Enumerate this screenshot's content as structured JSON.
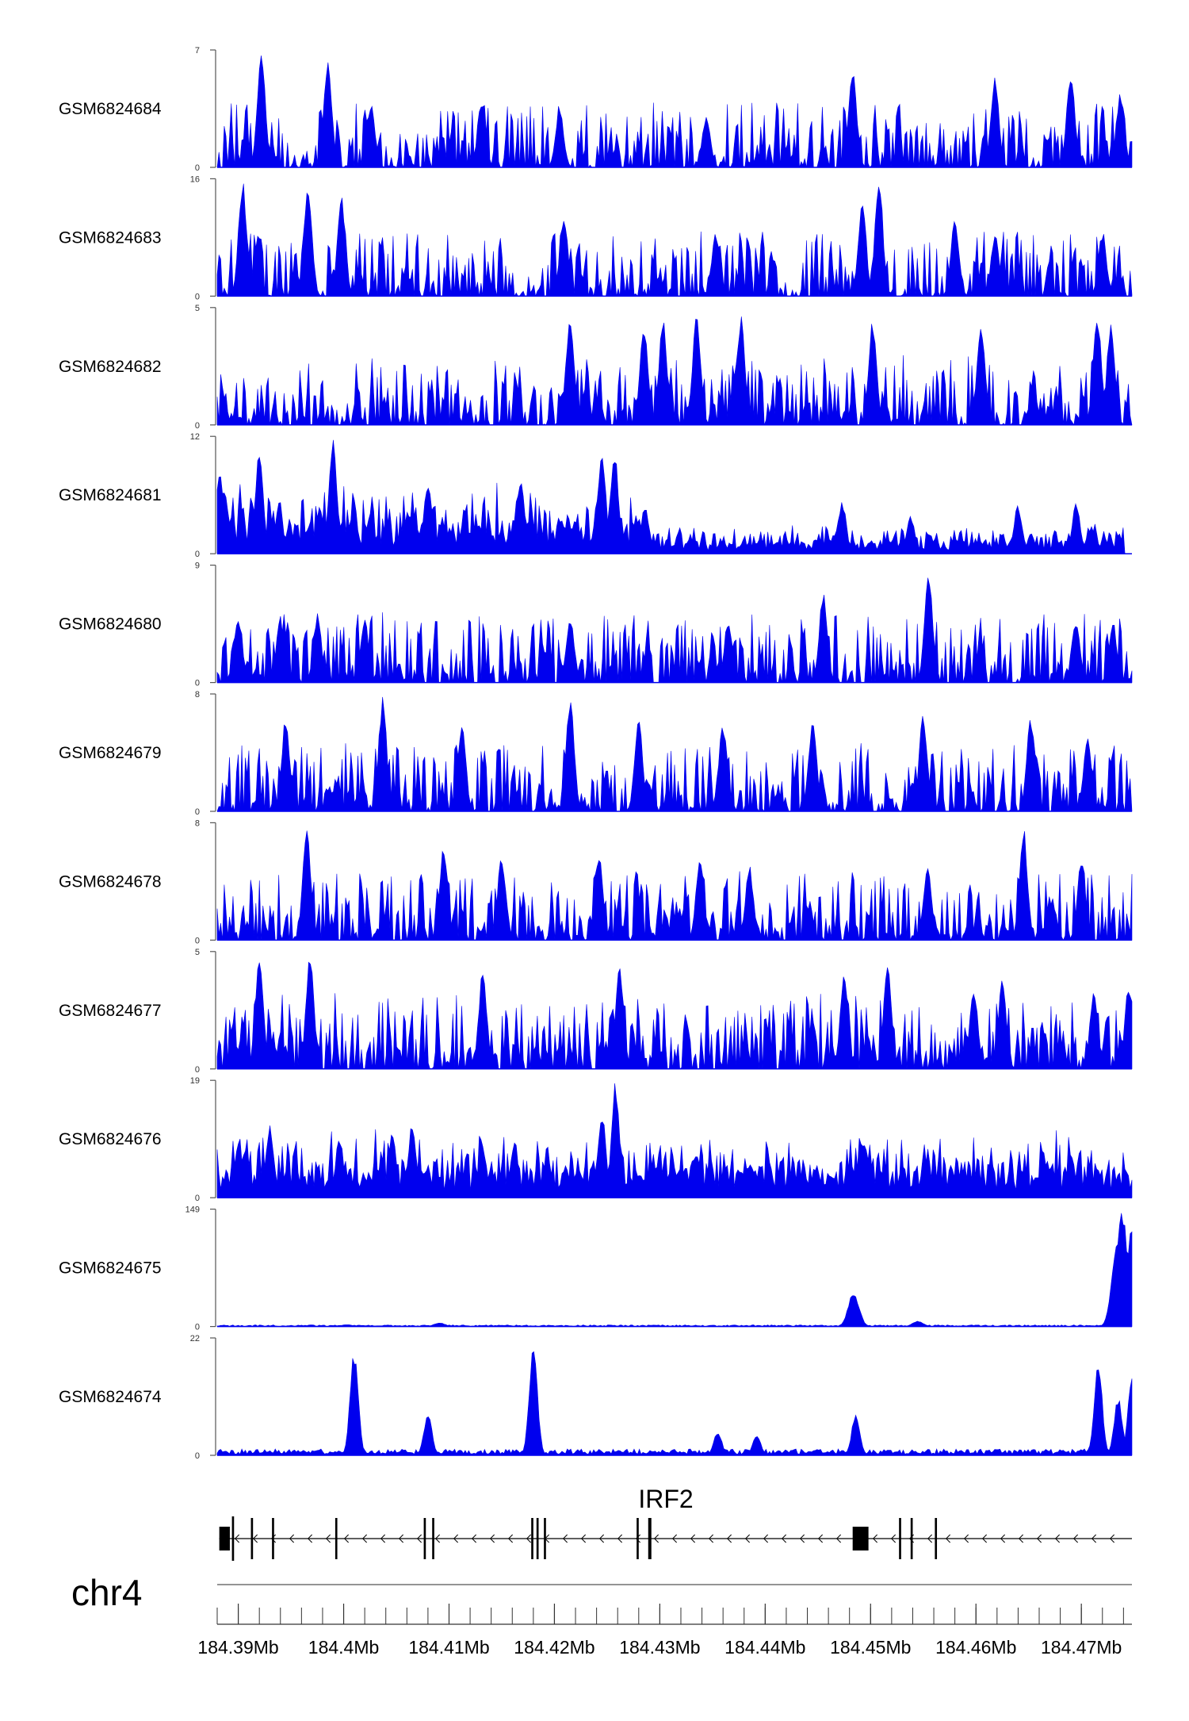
{
  "chart_data": {
    "type": "area",
    "chromosome": "chr4",
    "gene": {
      "name": "IRF2",
      "strand": "-",
      "start": 184.3882,
      "end": 184.4748,
      "exons": [
        [
          184.3882,
          184.3892
        ],
        [
          184.3894,
          184.3896
        ],
        [
          184.3912,
          184.3914
        ],
        [
          184.3932,
          184.3934
        ],
        [
          184.3992,
          184.3994
        ],
        [
          184.4076,
          184.4078
        ],
        [
          184.4084,
          184.4086
        ],
        [
          184.4178,
          184.418
        ],
        [
          184.4183,
          184.4185
        ],
        [
          184.419,
          184.4192
        ],
        [
          184.4278,
          184.428
        ],
        [
          184.4289,
          184.4292
        ],
        [
          184.4483,
          184.4498
        ],
        [
          184.4527,
          184.4529
        ],
        [
          184.4538,
          184.454
        ],
        [
          184.4561,
          184.4563
        ]
      ]
    },
    "x": {
      "label": "",
      "range": [
        184.388,
        184.4748
      ],
      "ticks": [
        184.39,
        184.4,
        184.41,
        184.42,
        184.43,
        184.44,
        184.45,
        184.46,
        184.47
      ],
      "tick_labels": [
        "184.39Mb",
        "184.4Mb",
        "184.41Mb",
        "184.42Mb",
        "184.43Mb",
        "184.44Mb",
        "184.45Mb",
        "184.46Mb",
        "184.47Mb"
      ],
      "minor_tick_step": 0.002
    },
    "grid": false,
    "fill_color": "#0000ee",
    "tracks": [
      {
        "name": "GSM6824684",
        "ymax": 7,
        "yticks": [
          "7",
          "0"
        ],
        "baseline": 0.06,
        "peaks": [
          [
            184.3922,
            7.0
          ],
          [
            184.3985,
            6.3
          ],
          [
            184.4026,
            3.9
          ],
          [
            184.4131,
            4.2
          ],
          [
            184.4205,
            3.5
          ],
          [
            184.4344,
            3.2
          ],
          [
            184.4483,
            6.2
          ],
          [
            184.4618,
            5.4
          ],
          [
            184.469,
            6.0
          ],
          [
            184.4737,
            4.6
          ]
        ]
      },
      {
        "name": "GSM6824683",
        "ymax": 16,
        "yticks": [
          "16",
          "0"
        ],
        "baseline": 0.0,
        "peaks": [
          [
            184.3904,
            16.0
          ],
          [
            184.3966,
            15.8
          ],
          [
            184.3998,
            13.8
          ],
          [
            184.4209,
            11.5
          ],
          [
            184.4353,
            9.0
          ],
          [
            184.4492,
            13.0
          ],
          [
            184.4508,
            16.0
          ],
          [
            184.458,
            10.8
          ],
          [
            184.4618,
            8.5
          ],
          [
            184.472,
            9.0
          ]
        ]
      },
      {
        "name": "GSM6824682",
        "ymax": 5,
        "yticks": [
          "5",
          "0"
        ],
        "baseline": 0.3,
        "peaks": [
          [
            184.4215,
            4.5
          ],
          [
            184.4285,
            4.4
          ],
          [
            184.4303,
            4.7
          ],
          [
            184.4335,
            4.9
          ],
          [
            184.4377,
            4.7
          ],
          [
            184.4502,
            4.5
          ],
          [
            184.4605,
            4.5
          ],
          [
            184.4715,
            4.9
          ],
          [
            184.4728,
            4.4
          ]
        ]
      },
      {
        "name": "GSM6824681",
        "ymax": 12,
        "yticks": [
          "12",
          "0"
        ],
        "baseline": 1.8,
        "peaks": [
          [
            184.3882,
            8.8
          ],
          [
            184.392,
            10.8
          ],
          [
            184.399,
            11.8
          ],
          [
            184.408,
            7.8
          ],
          [
            184.4168,
            7.5
          ],
          [
            184.4245,
            10.3
          ],
          [
            184.4257,
            10.5
          ],
          [
            184.4286,
            5.0
          ],
          [
            184.4473,
            5.5
          ],
          [
            184.4538,
            4.0
          ],
          [
            184.464,
            5.1
          ],
          [
            184.4695,
            5.2
          ],
          [
            184.471,
            2.8
          ]
        ]
      },
      {
        "name": "GSM6824680",
        "ymax": 9,
        "yticks": [
          "9",
          "0"
        ],
        "baseline": 0.6,
        "peaks": [
          [
            184.39,
            5.3
          ],
          [
            184.394,
            5.0
          ],
          [
            184.3975,
            5.2
          ],
          [
            184.402,
            5.0
          ],
          [
            184.4215,
            5.3
          ],
          [
            184.4365,
            5.1
          ],
          [
            184.4455,
            7.0
          ],
          [
            184.4555,
            9.0
          ],
          [
            184.4695,
            5.0
          ],
          [
            184.473,
            4.5
          ]
        ]
      },
      {
        "name": "GSM6824679",
        "ymax": 8,
        "yticks": [
          "8",
          "0"
        ],
        "baseline": 0.4,
        "peaks": [
          [
            184.3945,
            6.5
          ],
          [
            184.4037,
            7.9
          ],
          [
            184.4112,
            6.2
          ],
          [
            184.4215,
            7.8
          ],
          [
            184.428,
            6.2
          ],
          [
            184.436,
            6.2
          ],
          [
            184.4445,
            6.5
          ],
          [
            184.455,
            6.8
          ],
          [
            184.4652,
            6.6
          ],
          [
            184.4706,
            5.3
          ]
        ]
      },
      {
        "name": "GSM6824678",
        "ymax": 8,
        "yticks": [
          "8",
          "0"
        ],
        "baseline": 0.4,
        "peaks": [
          [
            184.3965,
            8.0
          ],
          [
            184.4095,
            6.6
          ],
          [
            184.415,
            6.0
          ],
          [
            184.4242,
            6.3
          ],
          [
            184.4338,
            5.8
          ],
          [
            184.4385,
            5.2
          ],
          [
            184.4554,
            5.2
          ],
          [
            184.4645,
            8.0
          ],
          [
            184.47,
            5.5
          ]
        ]
      },
      {
        "name": "GSM6824677",
        "ymax": 5,
        "yticks": [
          "5",
          "0"
        ],
        "baseline": 0.6,
        "peaks": [
          [
            184.392,
            5.0
          ],
          [
            184.3968,
            4.8
          ],
          [
            184.4132,
            4.3
          ],
          [
            184.4262,
            4.4
          ],
          [
            184.4475,
            4.2
          ],
          [
            184.4516,
            4.5
          ],
          [
            184.4598,
            3.6
          ],
          [
            184.4625,
            3.9
          ],
          [
            184.4712,
            3.5
          ],
          [
            184.4745,
            3.6
          ]
        ]
      },
      {
        "name": "GSM6824676",
        "ymax": 19,
        "yticks": [
          "19",
          "0"
        ],
        "baseline": 2.6,
        "peaks": [
          [
            184.39,
            9.0
          ],
          [
            184.393,
            11.8
          ],
          [
            184.3996,
            10.0
          ],
          [
            184.4046,
            10.5
          ],
          [
            184.4065,
            12.0
          ],
          [
            184.4162,
            9.0
          ],
          [
            184.4245,
            14.0
          ],
          [
            184.4258,
            19.0
          ],
          [
            184.4386,
            5.5
          ],
          [
            184.4494,
            9.2
          ],
          [
            184.4552,
            6.7
          ],
          [
            184.469,
            7.2
          ],
          [
            184.4715,
            5.0
          ]
        ]
      },
      {
        "name": "GSM6824675",
        "ymax": 149,
        "yticks": [
          "149",
          "0"
        ],
        "baseline": 1.2,
        "peaks": [
          [
            184.4003,
            2.5
          ],
          [
            184.4091,
            5.0
          ],
          [
            184.4484,
            44.0
          ],
          [
            184.4545,
            7.0
          ],
          [
            184.4734,
            110.0
          ],
          [
            184.4739,
            149.0
          ],
          [
            184.4748,
            130.0
          ]
        ]
      },
      {
        "name": "GSM6824674",
        "ymax": 22,
        "yticks": [
          "22",
          "0"
        ],
        "baseline": 0.7,
        "peaks": [
          [
            184.401,
            20.0
          ],
          [
            184.408,
            8.0
          ],
          [
            184.418,
            22.0
          ],
          [
            184.4355,
            4.5
          ],
          [
            184.4392,
            4.0
          ],
          [
            184.4486,
            8.0
          ],
          [
            184.4716,
            18.0
          ],
          [
            184.4735,
            11.0
          ],
          [
            184.4748,
            15.0
          ]
        ]
      }
    ]
  }
}
